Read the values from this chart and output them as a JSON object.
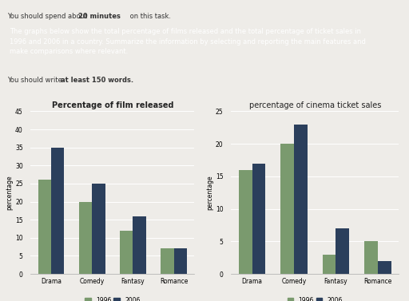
{
  "film_categories": [
    "Drama",
    "Comedy",
    "Fantasy",
    "Romance"
  ],
  "film_1996": [
    26,
    20,
    12,
    7
  ],
  "film_2006": [
    35,
    25,
    16,
    7
  ],
  "film_ylim": [
    0,
    45
  ],
  "film_yticks": [
    0,
    5,
    10,
    15,
    20,
    25,
    30,
    35,
    40,
    45
  ],
  "film_title": "Percentage of film released",
  "ticket_categories": [
    "Drama",
    "Comedy",
    "Fantasy",
    "Romance"
  ],
  "ticket_1996": [
    16,
    20,
    3,
    5
  ],
  "ticket_2006": [
    17,
    23,
    7,
    2
  ],
  "ticket_ylim": [
    0,
    25
  ],
  "ticket_yticks": [
    0,
    5,
    10,
    15,
    20,
    25
  ],
  "ticket_title": "percentage of cinema ticket sales",
  "color_1996": "#7a9a6e",
  "color_2006": "#2b3f5c",
  "ylabel": "percentage",
  "bg_color": "#eeece8",
  "prompt_bg": "#1e3356",
  "prompt_text_color": "#ffffff",
  "bar_width": 0.32
}
